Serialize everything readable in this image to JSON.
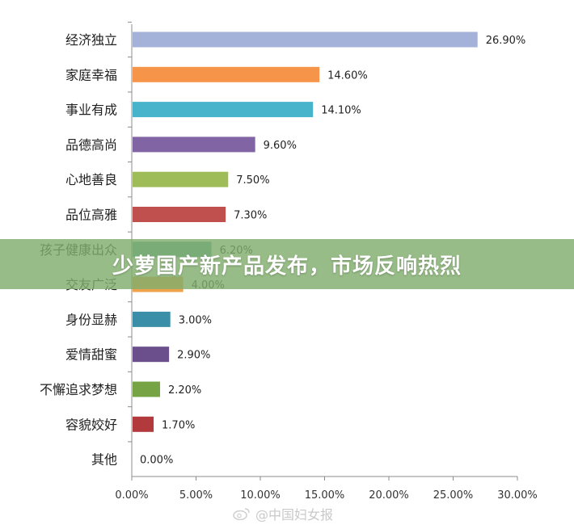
{
  "chart_data": {
    "type": "bar",
    "orientation": "horizontal",
    "categories": [
      "经济独立",
      "家庭幸福",
      "事业有成",
      "品德高尚",
      "心地善良",
      "品位高雅",
      "孩子健康出众",
      "交友广泛",
      "身份显赫",
      "爱情甜蜜",
      "不懈追求梦想",
      "容貌姣好",
      "其他"
    ],
    "values": [
      26.9,
      14.6,
      14.1,
      9.6,
      7.5,
      7.3,
      6.2,
      4.0,
      3.0,
      2.9,
      2.2,
      1.7,
      0.0
    ],
    "value_labels": [
      "26.90%",
      "14.60%",
      "14.10%",
      "9.60%",
      "7.50%",
      "7.30%",
      "6.20%",
      "4.00%",
      "3.00%",
      "2.90%",
      "2.20%",
      "1.70%",
      "0.00%"
    ],
    "colors": [
      "#a4b1d9",
      "#f6954a",
      "#47b4cb",
      "#8164a3",
      "#9ebd59",
      "#c0504d",
      "#5aa7a4",
      "#f0a24b",
      "#3a8ea8",
      "#6a4f8c",
      "#76a343",
      "#b23a3d",
      "#808080"
    ],
    "xticks": [
      "0.00%",
      "5.00%",
      "10.00%",
      "15.00%",
      "20.00%",
      "25.00%",
      "30.00%"
    ],
    "xlim": [
      0,
      30
    ],
    "grid": false,
    "legend": "none"
  },
  "banner": {
    "text": "少萝国产新产品发布，市场反响热烈"
  },
  "watermark": {
    "text": "@中国妇女报"
  }
}
